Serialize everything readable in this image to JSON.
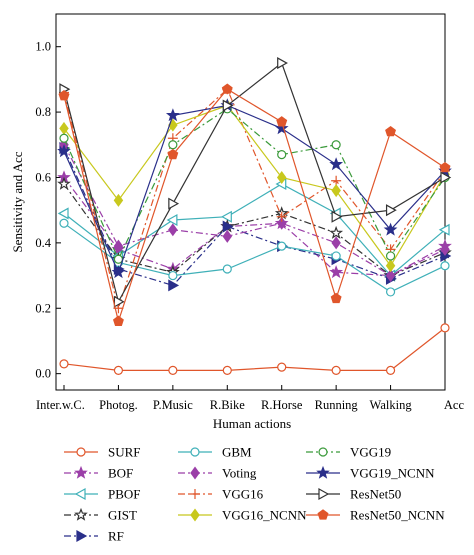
{
  "chart_data": {
    "type": "line",
    "title": "",
    "xlabel": "Human actions",
    "ylabel": "Sensitivity and Acc",
    "ylim": [
      -0.05,
      1.1
    ],
    "yticks": [
      0.0,
      0.2,
      0.4,
      0.6,
      0.8,
      1.0
    ],
    "ytick_labels": [
      "0.0",
      "0.2",
      "0.4",
      "0.6",
      "0.8",
      "1.0"
    ],
    "grid": false,
    "legend_position": "bottom",
    "categories": [
      "Inter.w.C.",
      "Photog.",
      "P.Music",
      "R.Bike",
      "R.Horse",
      "Running",
      "Walking",
      "Acc"
    ],
    "series": [
      {
        "name": "SURF",
        "color": "#e0562b",
        "dash": "solid",
        "marker": "circle-open",
        "values": [
          0.03,
          0.01,
          0.01,
          0.01,
          0.02,
          0.01,
          0.01,
          0.14
        ]
      },
      {
        "name": "BOF",
        "color": "#9b3fa8",
        "dash": "dashdot",
        "marker": "star-filled",
        "values": [
          0.6,
          0.38,
          0.32,
          0.45,
          0.46,
          0.31,
          0.3,
          0.39
        ]
      },
      {
        "name": "PBOF",
        "color": "#3fb0b8",
        "dash": "solid",
        "marker": "triangle-left-open",
        "values": [
          0.49,
          0.36,
          0.47,
          0.48,
          0.58,
          0.49,
          0.3,
          0.44
        ]
      },
      {
        "name": "GIST",
        "color": "#333333",
        "dash": "dashdot",
        "marker": "star-open",
        "values": [
          0.58,
          0.35,
          0.31,
          0.45,
          0.49,
          0.43,
          0.3,
          0.37
        ]
      },
      {
        "name": "RF",
        "color": "#2a2f8a",
        "dash": "dashdot",
        "marker": "triangle-right-filled",
        "values": [
          0.69,
          0.32,
          0.27,
          0.45,
          0.39,
          0.35,
          0.29,
          0.36
        ]
      },
      {
        "name": "GBM",
        "color": "#3fb0b8",
        "dash": "solid",
        "marker": "circle-open",
        "values": [
          0.46,
          0.34,
          0.3,
          0.32,
          0.39,
          0.36,
          0.25,
          0.33
        ]
      },
      {
        "name": "Voting",
        "color": "#9b3fa8",
        "dash": "dashdot",
        "marker": "diamond-filled",
        "values": [
          0.7,
          0.39,
          0.44,
          0.42,
          0.46,
          0.4,
          0.3,
          0.38
        ]
      },
      {
        "name": "VGG16",
        "color": "#e0562b",
        "dash": "dashdot",
        "marker": "plus",
        "values": [
          0.86,
          0.2,
          0.72,
          0.87,
          0.48,
          0.59,
          0.38,
          0.62
        ]
      },
      {
        "name": "VGG16_NCNN",
        "color": "#c8c81e",
        "dash": "solid",
        "marker": "diamond-filled",
        "values": [
          0.75,
          0.53,
          0.76,
          0.82,
          0.6,
          0.56,
          0.33,
          0.61
        ]
      },
      {
        "name": "VGG19",
        "color": "#3a9a3a",
        "dash": "dashdot",
        "marker": "circle-open",
        "values": [
          0.72,
          0.35,
          0.7,
          0.81,
          0.67,
          0.7,
          0.36,
          0.6
        ]
      },
      {
        "name": "VGG19_NCNN",
        "color": "#2a2f8a",
        "dash": "solid",
        "marker": "star-filled",
        "values": [
          0.68,
          0.31,
          0.79,
          0.82,
          0.75,
          0.64,
          0.44,
          0.62
        ]
      },
      {
        "name": "ResNet50",
        "color": "#333333",
        "dash": "solid",
        "marker": "triangle-right-open",
        "values": [
          0.87,
          0.22,
          0.52,
          0.82,
          0.95,
          0.48,
          0.5,
          0.6
        ]
      },
      {
        "name": "ResNet50_NCNN",
        "color": "#e0562b",
        "dash": "solid",
        "marker": "pentagon-filled",
        "values": [
          0.85,
          0.16,
          0.67,
          0.87,
          0.77,
          0.23,
          0.74,
          0.63
        ]
      }
    ]
  }
}
